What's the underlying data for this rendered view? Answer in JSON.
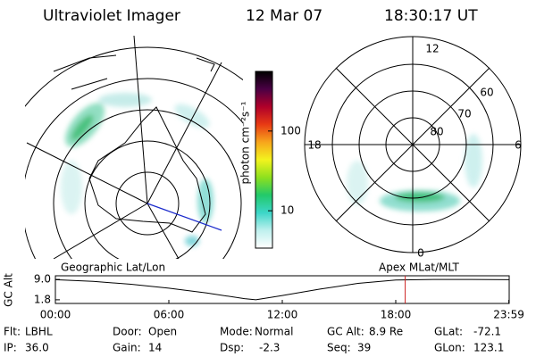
{
  "header": {
    "title": "Ultraviolet Imager",
    "date": "12 Mar 07",
    "time": "18:30:17 UT"
  },
  "colorbar": {
    "label": "photon cm⁻²s⁻¹",
    "scale": "log",
    "lim": [
      3.4,
      560
    ],
    "ticks": [
      10,
      100
    ],
    "colors": [
      "#ffffff",
      "#bff0ee",
      "#3cd6c8",
      "#22c96a",
      "#8ee01e",
      "#f3f31e",
      "#f7a51c",
      "#e83a14",
      "#b0002a",
      "#4a0044",
      "#000000"
    ]
  },
  "polar": {
    "mlt_labels": [
      "12",
      "18",
      "6",
      "0"
    ],
    "mlat_labels": [
      "60",
      "70",
      "80"
    ]
  },
  "altitude": {
    "type": "line",
    "left_label": "Geographic Lat/Lon",
    "right_label": "Apex MLat/MLT",
    "ylabel": "GC Alt",
    "xlim": [
      0,
      24
    ],
    "ylim": [
      0.5,
      10.3
    ],
    "xticks": [
      {
        "value": 0,
        "label": "00:00"
      },
      {
        "value": 6,
        "label": "06:00"
      },
      {
        "value": 12,
        "label": "12:00"
      },
      {
        "value": 18,
        "label": "18:00"
      },
      {
        "value": 23.98,
        "label": "23:59"
      }
    ],
    "yticks": [
      {
        "value": 9.0,
        "label": "9.0"
      },
      {
        "value": 1.8,
        "label": "1.8"
      }
    ],
    "x": [
      0,
      2,
      4,
      6,
      8,
      10,
      10.6,
      12,
      14,
      16,
      18,
      20,
      22,
      24
    ],
    "values": [
      8.9,
      8.3,
      7.3,
      5.9,
      4.2,
      2.2,
      1.8,
      3.3,
      5.6,
      7.6,
      8.8,
      9.0,
      9.0,
      8.9
    ],
    "color": "#000000",
    "marker_x": 18.5,
    "marker_color": "#cc2222"
  },
  "status": [
    [
      [
        "Flt:",
        "LBHL"
      ],
      [
        "Door:",
        "Open"
      ],
      [
        "Mode:",
        "Normal"
      ],
      [
        "GC Alt:",
        "8.9 Re"
      ],
      [
        "GLat:",
        "-72.1"
      ]
    ],
    [
      [
        "IP:",
        "36.0"
      ],
      [
        "Gain:",
        "14"
      ],
      [
        "Dsp:",
        "-2.3"
      ],
      [
        "Seq:",
        "39"
      ],
      [
        "GLon:",
        "123.1"
      ]
    ]
  ]
}
